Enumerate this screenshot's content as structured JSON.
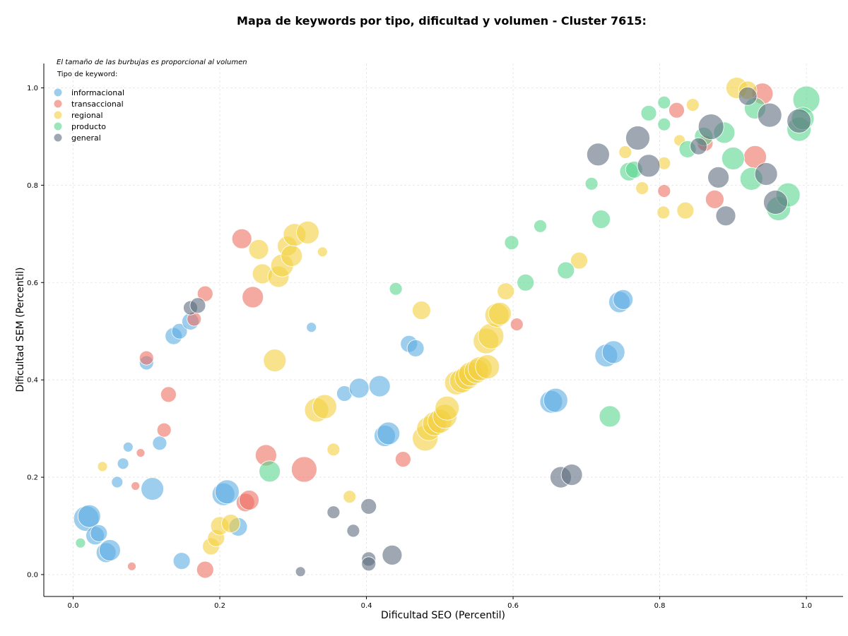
{
  "chart_data": {
    "type": "scatter",
    "title": "Mapa de keywords por tipo, dificultad y volumen - Cluster 7615:",
    "xlabel": "Dificultad SEO (Percentil)",
    "ylabel": "Dificultad SEM (Percentil)",
    "xlim": [
      -0.04,
      1.05
    ],
    "ylim": [
      -0.045,
      1.05
    ],
    "xticks": [
      "0.0",
      "0.2",
      "0.4",
      "0.6",
      "0.8",
      "1.0"
    ],
    "yticks": [
      "0.0",
      "0.2",
      "0.4",
      "0.6",
      "0.8",
      "1.0"
    ],
    "grid": true,
    "note": "El tamaño de las burbujas es proporcional al volumen",
    "legend_title": "Tipo de keyword:",
    "legend_position": "top-left",
    "series": [
      {
        "name": "informacional",
        "color": "#5dade2",
        "points": [
          [
            0.018,
            0.115,
            18
          ],
          [
            0.022,
            0.12,
            16
          ],
          [
            0.03,
            0.08,
            13
          ],
          [
            0.035,
            0.085,
            12
          ],
          [
            0.045,
            0.045,
            14
          ],
          [
            0.05,
            0.05,
            15
          ],
          [
            0.06,
            0.19,
            8
          ],
          [
            0.068,
            0.228,
            8
          ],
          [
            0.075,
            0.262,
            7
          ],
          [
            0.1,
            0.435,
            10
          ],
          [
            0.108,
            0.176,
            16
          ],
          [
            0.118,
            0.27,
            10
          ],
          [
            0.137,
            0.49,
            12
          ],
          [
            0.145,
            0.5,
            11
          ],
          [
            0.148,
            0.028,
            12
          ],
          [
            0.16,
            0.52,
            12
          ],
          [
            0.205,
            0.165,
            16
          ],
          [
            0.21,
            0.17,
            17
          ],
          [
            0.225,
            0.098,
            13
          ],
          [
            0.325,
            0.508,
            7
          ],
          [
            0.37,
            0.372,
            11
          ],
          [
            0.39,
            0.383,
            14
          ],
          [
            0.418,
            0.387,
            15
          ],
          [
            0.425,
            0.285,
            15
          ],
          [
            0.43,
            0.29,
            16
          ],
          [
            0.458,
            0.474,
            12
          ],
          [
            0.467,
            0.465,
            12
          ],
          [
            0.652,
            0.355,
            16
          ],
          [
            0.658,
            0.358,
            17
          ],
          [
            0.727,
            0.45,
            16
          ],
          [
            0.737,
            0.457,
            16
          ],
          [
            0.745,
            0.56,
            15
          ],
          [
            0.75,
            0.565,
            14
          ]
        ]
      },
      {
        "name": "transaccional",
        "color": "#ec7063",
        "points": [
          [
            0.08,
            0.017,
            6
          ],
          [
            0.085,
            0.182,
            6
          ],
          [
            0.092,
            0.25,
            6
          ],
          [
            0.1,
            0.445,
            10
          ],
          [
            0.124,
            0.297,
            10
          ],
          [
            0.13,
            0.37,
            11
          ],
          [
            0.165,
            0.525,
            10
          ],
          [
            0.18,
            0.577,
            11
          ],
          [
            0.18,
            0.01,
            12
          ],
          [
            0.23,
            0.69,
            14
          ],
          [
            0.235,
            0.148,
            13
          ],
          [
            0.24,
            0.153,
            14
          ],
          [
            0.245,
            0.57,
            15
          ],
          [
            0.263,
            0.245,
            15
          ],
          [
            0.315,
            0.216,
            18
          ],
          [
            0.45,
            0.237,
            11
          ],
          [
            0.605,
            0.514,
            9
          ],
          [
            0.806,
            0.788,
            9
          ],
          [
            0.823,
            0.954,
            11
          ],
          [
            0.862,
            0.886,
            11
          ],
          [
            0.875,
            0.771,
            13
          ],
          [
            0.93,
            0.858,
            16
          ],
          [
            0.94,
            0.988,
            15
          ]
        ]
      },
      {
        "name": "regional",
        "color": "#f4d03f",
        "points": [
          [
            0.04,
            0.222,
            7
          ],
          [
            0.188,
            0.058,
            12
          ],
          [
            0.195,
            0.075,
            12
          ],
          [
            0.2,
            0.1,
            13
          ],
          [
            0.215,
            0.105,
            13
          ],
          [
            0.253,
            0.668,
            14
          ],
          [
            0.258,
            0.618,
            14
          ],
          [
            0.275,
            0.44,
            16
          ],
          [
            0.28,
            0.612,
            15
          ],
          [
            0.285,
            0.635,
            16
          ],
          [
            0.292,
            0.675,
            14
          ],
          [
            0.298,
            0.655,
            15
          ],
          [
            0.302,
            0.698,
            16
          ],
          [
            0.32,
            0.703,
            16
          ],
          [
            0.332,
            0.338,
            17
          ],
          [
            0.34,
            0.663,
            7
          ],
          [
            0.343,
            0.345,
            17
          ],
          [
            0.355,
            0.257,
            9
          ],
          [
            0.377,
            0.16,
            9
          ],
          [
            0.475,
            0.543,
            13
          ],
          [
            0.48,
            0.28,
            18
          ],
          [
            0.485,
            0.3,
            17
          ],
          [
            0.493,
            0.31,
            17
          ],
          [
            0.5,
            0.315,
            17
          ],
          [
            0.507,
            0.325,
            17
          ],
          [
            0.51,
            0.342,
            17
          ],
          [
            0.523,
            0.394,
            17
          ],
          [
            0.53,
            0.398,
            17
          ],
          [
            0.537,
            0.405,
            17
          ],
          [
            0.542,
            0.412,
            17
          ],
          [
            0.55,
            0.418,
            17
          ],
          [
            0.555,
            0.423,
            17
          ],
          [
            0.565,
            0.427,
            17
          ],
          [
            0.563,
            0.48,
            18
          ],
          [
            0.57,
            0.49,
            18
          ],
          [
            0.578,
            0.533,
            17
          ],
          [
            0.582,
            0.536,
            16
          ],
          [
            0.59,
            0.582,
            12
          ],
          [
            0.69,
            0.645,
            12
          ],
          [
            0.753,
            0.868,
            9
          ],
          [
            0.776,
            0.794,
            9
          ],
          [
            0.805,
            0.744,
            9
          ],
          [
            0.806,
            0.845,
            9
          ],
          [
            0.835,
            0.748,
            12
          ],
          [
            0.845,
            0.965,
            9
          ],
          [
            0.905,
            1.0,
            15
          ],
          [
            0.92,
            0.995,
            13
          ],
          [
            0.827,
            0.892,
            8
          ]
        ]
      },
      {
        "name": "producto",
        "color": "#58d68d",
        "points": [
          [
            0.01,
            0.065,
            7
          ],
          [
            0.268,
            0.212,
            15
          ],
          [
            0.44,
            0.587,
            9
          ],
          [
            0.598,
            0.682,
            10
          ],
          [
            0.617,
            0.6,
            12
          ],
          [
            0.637,
            0.716,
            9
          ],
          [
            0.672,
            0.625,
            12
          ],
          [
            0.707,
            0.803,
            9
          ],
          [
            0.72,
            0.73,
            13
          ],
          [
            0.732,
            0.325,
            15
          ],
          [
            0.758,
            0.828,
            13
          ],
          [
            0.765,
            0.832,
            12
          ],
          [
            0.785,
            0.948,
            11
          ],
          [
            0.806,
            0.97,
            9
          ],
          [
            0.806,
            0.925,
            9
          ],
          [
            0.838,
            0.874,
            12
          ],
          [
            0.86,
            0.9,
            13
          ],
          [
            0.888,
            0.908,
            15
          ],
          [
            0.9,
            0.855,
            16
          ],
          [
            0.925,
            0.813,
            16
          ],
          [
            0.93,
            0.958,
            15
          ],
          [
            0.962,
            0.752,
            17
          ],
          [
            0.975,
            0.78,
            17
          ],
          [
            0.99,
            0.915,
            17
          ],
          [
            1.0,
            0.976,
            19
          ],
          [
            0.995,
            0.937,
            16
          ]
        ]
      },
      {
        "name": "general",
        "color": "#5d6d7e",
        "points": [
          [
            0.16,
            0.548,
            10
          ],
          [
            0.17,
            0.553,
            11
          ],
          [
            0.31,
            0.006,
            7
          ],
          [
            0.355,
            0.128,
            9
          ],
          [
            0.382,
            0.09,
            9
          ],
          [
            0.403,
            0.14,
            11
          ],
          [
            0.403,
            0.032,
            10
          ],
          [
            0.403,
            0.022,
            10
          ],
          [
            0.435,
            0.04,
            14
          ],
          [
            0.665,
            0.2,
            15
          ],
          [
            0.68,
            0.205,
            15
          ],
          [
            0.716,
            0.863,
            16
          ],
          [
            0.77,
            0.897,
            17
          ],
          [
            0.785,
            0.84,
            16
          ],
          [
            0.853,
            0.88,
            12
          ],
          [
            0.87,
            0.92,
            18
          ],
          [
            0.88,
            0.816,
            15
          ],
          [
            0.89,
            0.737,
            14
          ],
          [
            0.92,
            0.983,
            13
          ],
          [
            0.945,
            0.823,
            16
          ],
          [
            0.95,
            0.944,
            17
          ],
          [
            0.958,
            0.765,
            17
          ],
          [
            0.99,
            0.932,
            17
          ]
        ]
      }
    ]
  }
}
